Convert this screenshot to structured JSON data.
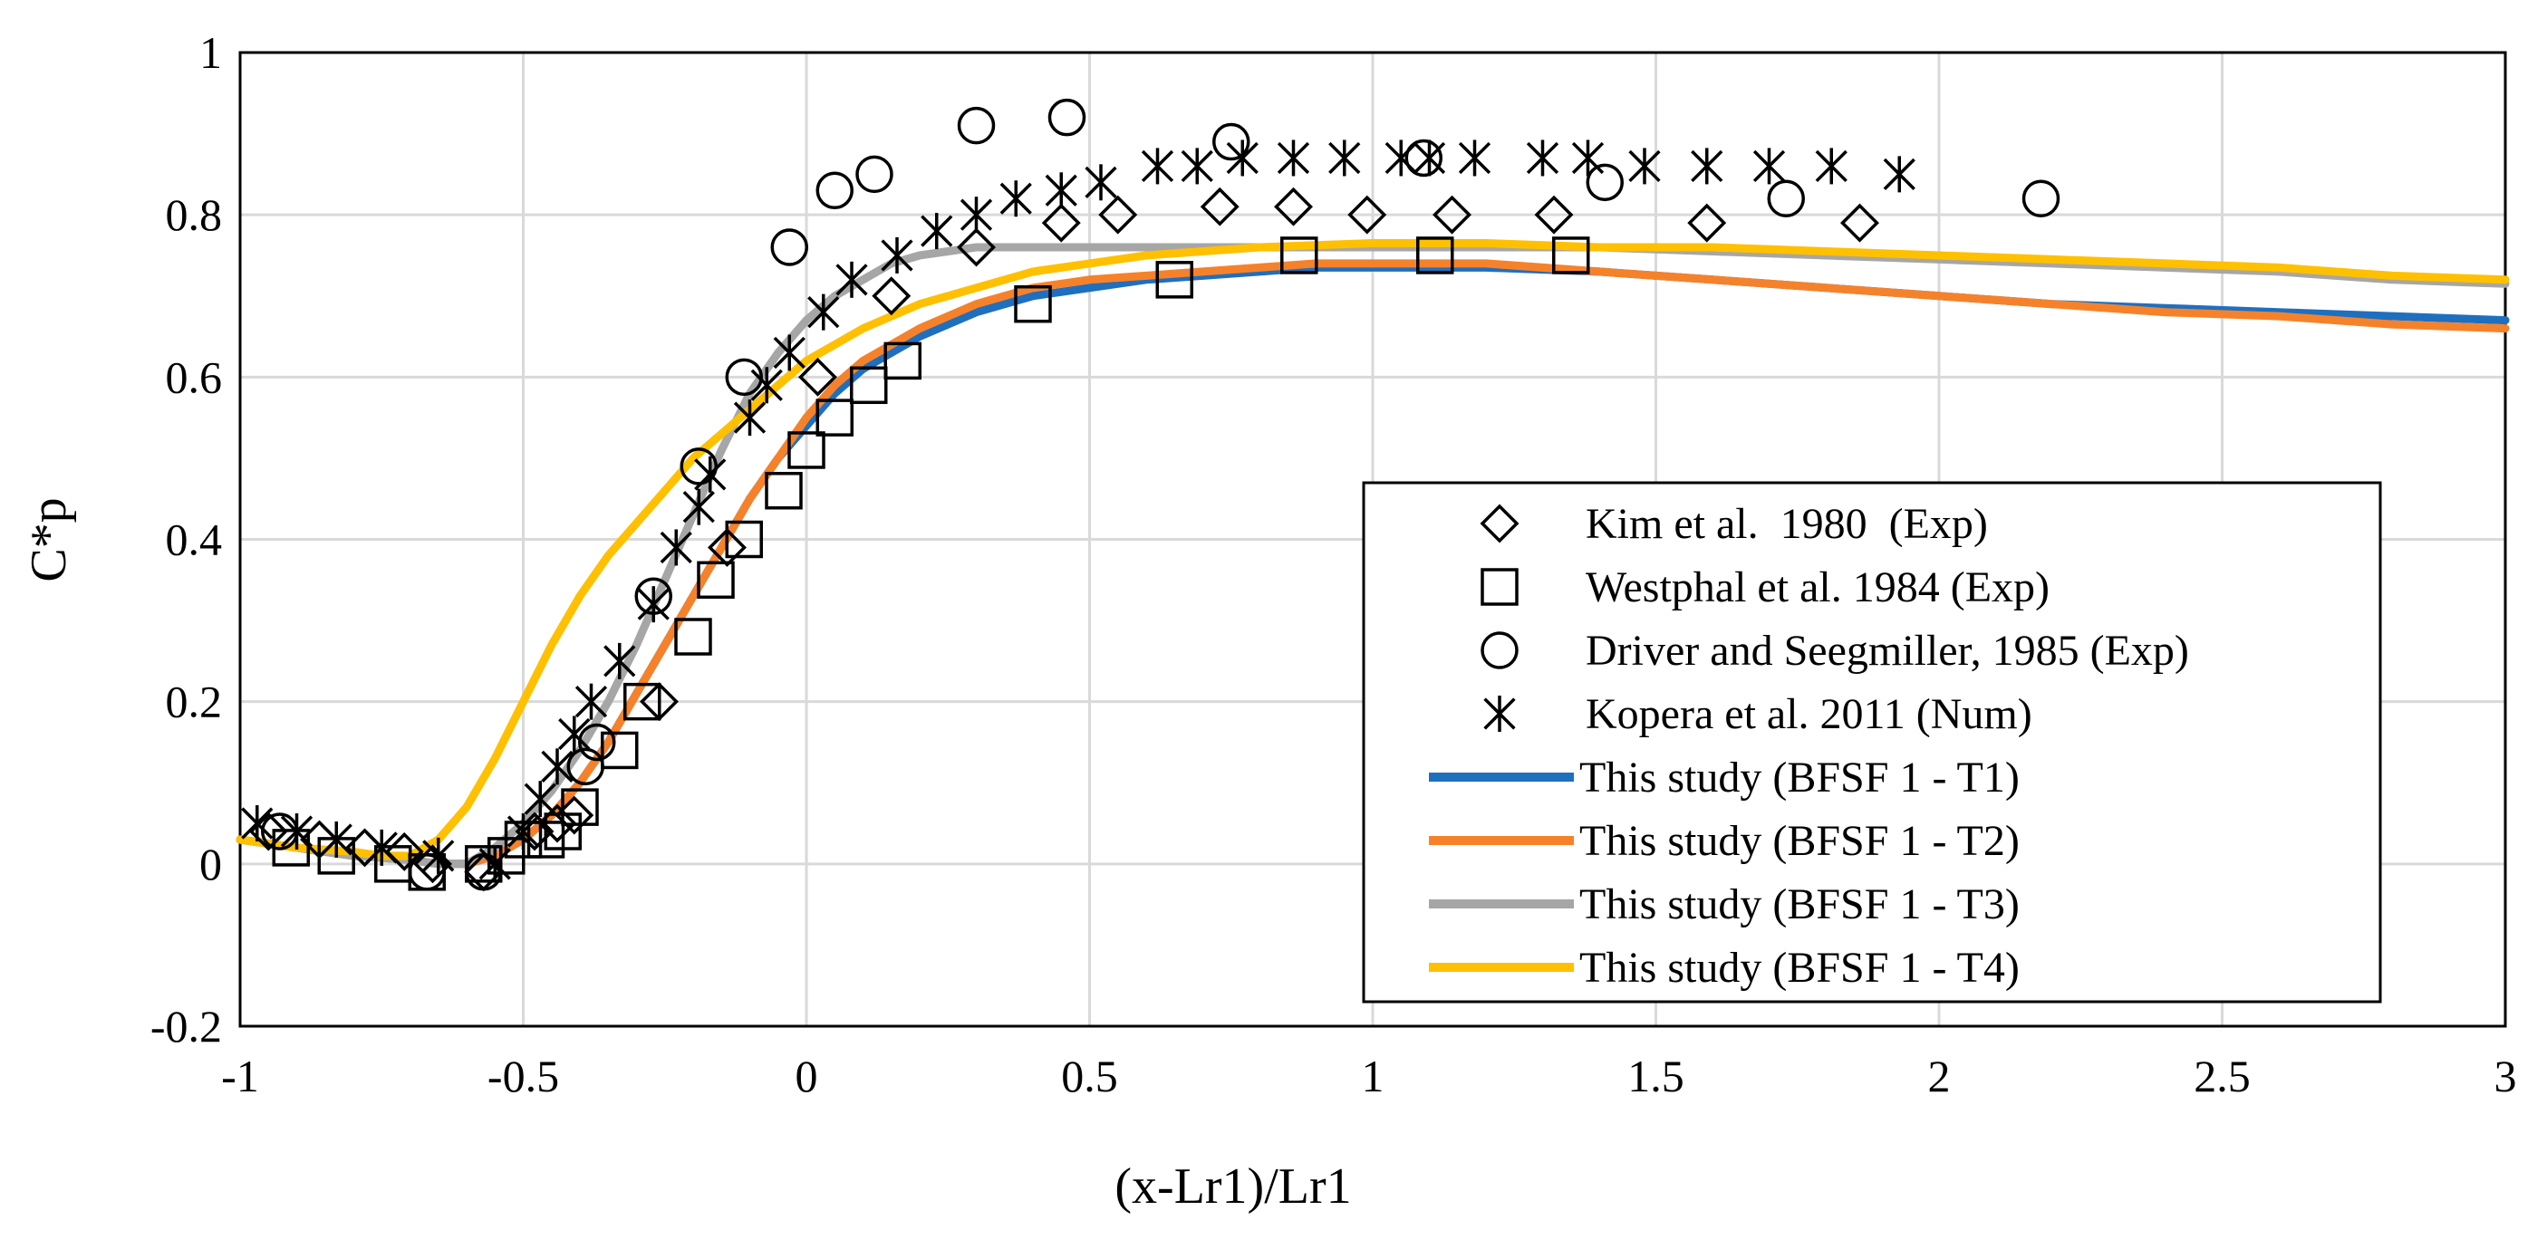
{
  "chart_data": {
    "type": "scatter",
    "title": "",
    "xlabel": "(x-Lr1)/Lr1",
    "ylabel": "C*p",
    "xlim": [
      -1,
      3
    ],
    "ylim": [
      -0.2,
      1
    ],
    "grid": true,
    "legend_position": "center-right",
    "x_ticks": [
      -1,
      -0.5,
      0,
      0.5,
      1,
      1.5,
      2,
      2.5,
      3
    ],
    "x_tick_labels": [
      "-1",
      "-0.5",
      "0",
      "0.5",
      "1",
      "1.5",
      "2",
      "2.5",
      "3"
    ],
    "y_ticks": [
      -0.2,
      0,
      0.2,
      0.4,
      0.6,
      0.8,
      1
    ],
    "y_tick_labels": [
      "-0.2",
      "0",
      "0.2",
      "0.4",
      "0.6",
      "0.8",
      "1"
    ],
    "series": [
      {
        "name": "Kim et al.  1980  (Exp)",
        "kind": "marker",
        "marker": "diamond",
        "color": "#000000",
        "x": [
          -0.95,
          -0.86,
          -0.78,
          -0.71,
          -0.66,
          -0.57,
          -0.48,
          -0.44,
          -0.41,
          -0.26,
          -0.14,
          0.02,
          0.15,
          0.3,
          0.45,
          0.55,
          0.73,
          0.86,
          0.99,
          1.14,
          1.32,
          1.59,
          1.86
        ],
        "y": [
          0.04,
          0.03,
          0.02,
          0.015,
          0.0,
          -0.01,
          0.04,
          0.05,
          0.06,
          0.2,
          0.39,
          0.6,
          0.7,
          0.76,
          0.79,
          0.8,
          0.81,
          0.81,
          0.8,
          0.8,
          0.8,
          0.79,
          0.79
        ]
      },
      {
        "name": "Westphal et al. 1984 (Exp)",
        "kind": "marker",
        "marker": "square",
        "color": "#000000",
        "x": [
          -0.91,
          -0.83,
          -0.73,
          -0.67,
          -0.57,
          -0.53,
          -0.5,
          -0.46,
          -0.43,
          -0.4,
          -0.33,
          -0.29,
          -0.2,
          -0.16,
          -0.11,
          -0.04,
          0.0,
          0.05,
          0.11,
          0.17,
          0.4,
          0.65,
          0.87,
          1.11,
          1.35
        ],
        "y": [
          0.02,
          0.01,
          0.0,
          -0.01,
          0.0,
          0.01,
          0.03,
          0.03,
          0.04,
          0.07,
          0.14,
          0.2,
          0.28,
          0.35,
          0.4,
          0.46,
          0.51,
          0.55,
          0.59,
          0.62,
          0.69,
          0.72,
          0.75,
          0.75,
          0.75
        ]
      },
      {
        "name": "Driver and Seegmiller, 1985 (Exp)",
        "kind": "marker",
        "marker": "circle",
        "color": "#000000",
        "x": [
          -0.93,
          -0.67,
          -0.57,
          -0.39,
          -0.37,
          -0.27,
          -0.19,
          -0.11,
          -0.03,
          0.05,
          0.12,
          0.3,
          0.46,
          0.75,
          1.09,
          1.41,
          1.73,
          2.18
        ],
        "y": [
          0.04,
          -0.01,
          -0.01,
          0.12,
          0.15,
          0.33,
          0.49,
          0.6,
          0.76,
          0.83,
          0.85,
          0.91,
          0.92,
          0.89,
          0.87,
          0.84,
          0.82,
          0.82
        ]
      },
      {
        "name": "Kopera et al. 2011 (Num)",
        "kind": "marker",
        "marker": "asterisk",
        "color": "#000000",
        "x": [
          -0.97,
          -0.9,
          -0.83,
          -0.75,
          -0.65,
          -0.55,
          -0.5,
          -0.47,
          -0.44,
          -0.41,
          -0.38,
          -0.33,
          -0.27,
          -0.23,
          -0.19,
          -0.17,
          -0.1,
          -0.07,
          -0.03,
          0.03,
          0.08,
          0.16,
          0.23,
          0.3,
          0.37,
          0.45,
          0.52,
          0.62,
          0.69,
          0.77,
          0.86,
          0.95,
          1.05,
          1.1,
          1.18,
          1.3,
          1.38,
          1.48,
          1.59,
          1.7,
          1.81,
          1.93
        ],
        "y": [
          0.05,
          0.04,
          0.03,
          0.02,
          0.01,
          0.0,
          0.04,
          0.08,
          0.12,
          0.16,
          0.2,
          0.25,
          0.32,
          0.39,
          0.44,
          0.48,
          0.55,
          0.59,
          0.63,
          0.68,
          0.72,
          0.75,
          0.78,
          0.8,
          0.82,
          0.83,
          0.84,
          0.86,
          0.86,
          0.87,
          0.87,
          0.87,
          0.87,
          0.87,
          0.87,
          0.87,
          0.87,
          0.86,
          0.86,
          0.86,
          0.86,
          0.85
        ]
      },
      {
        "name": "This study (BFSF 1 - T1)",
        "kind": "line",
        "color": "#1f6fbf",
        "x": [
          -1,
          -0.9,
          -0.8,
          -0.7,
          -0.65,
          -0.6,
          -0.55,
          -0.5,
          -0.45,
          -0.4,
          -0.35,
          -0.3,
          -0.25,
          -0.2,
          -0.15,
          -0.1,
          -0.05,
          0,
          0.05,
          0.1,
          0.2,
          0.3,
          0.4,
          0.5,
          0.6,
          0.7,
          0.8,
          0.9,
          1.0,
          1.2,
          1.4,
          1.6,
          1.8,
          2.0,
          2.2,
          2.4,
          2.6,
          2.8,
          3.0
        ],
        "y": [
          0.03,
          0.02,
          0.01,
          0.005,
          0.0,
          0.0,
          0.01,
          0.03,
          0.06,
          0.1,
          0.15,
          0.21,
          0.27,
          0.33,
          0.39,
          0.45,
          0.5,
          0.54,
          0.58,
          0.61,
          0.65,
          0.68,
          0.7,
          0.71,
          0.72,
          0.725,
          0.73,
          0.735,
          0.735,
          0.735,
          0.73,
          0.72,
          0.71,
          0.7,
          0.69,
          0.685,
          0.68,
          0.675,
          0.67
        ]
      },
      {
        "name": "This study (BFSF 1 - T2)",
        "kind": "line",
        "color": "#f5822b",
        "x": [
          -1,
          -0.9,
          -0.8,
          -0.7,
          -0.65,
          -0.6,
          -0.55,
          -0.5,
          -0.45,
          -0.4,
          -0.35,
          -0.3,
          -0.25,
          -0.2,
          -0.15,
          -0.1,
          -0.05,
          0,
          0.05,
          0.1,
          0.2,
          0.3,
          0.4,
          0.5,
          0.6,
          0.7,
          0.8,
          0.9,
          1.0,
          1.2,
          1.4,
          1.6,
          1.8,
          2.0,
          2.2,
          2.4,
          2.6,
          2.8,
          3.0
        ],
        "y": [
          0.03,
          0.02,
          0.01,
          0.005,
          0.0,
          0.0,
          0.01,
          0.03,
          0.06,
          0.1,
          0.15,
          0.21,
          0.27,
          0.33,
          0.39,
          0.45,
          0.5,
          0.55,
          0.59,
          0.62,
          0.66,
          0.69,
          0.71,
          0.72,
          0.725,
          0.73,
          0.735,
          0.74,
          0.74,
          0.74,
          0.73,
          0.72,
          0.71,
          0.7,
          0.69,
          0.68,
          0.675,
          0.665,
          0.66
        ]
      },
      {
        "name": "This study (BFSF 1 - T3)",
        "kind": "line",
        "color": "#a6a6a6",
        "x": [
          -1,
          -0.9,
          -0.8,
          -0.7,
          -0.65,
          -0.6,
          -0.55,
          -0.5,
          -0.45,
          -0.4,
          -0.35,
          -0.3,
          -0.25,
          -0.2,
          -0.15,
          -0.1,
          -0.05,
          0,
          0.05,
          0.1,
          0.15,
          0.2,
          0.25,
          0.3,
          0.4,
          0.5,
          0.6,
          0.8,
          1.0,
          1.2,
          1.4,
          1.6,
          1.8,
          2.0,
          2.2,
          2.4,
          2.6,
          2.8,
          3.0
        ],
        "y": [
          0.03,
          0.02,
          0.01,
          0.005,
          0.0,
          0.0,
          0.02,
          0.05,
          0.09,
          0.14,
          0.2,
          0.27,
          0.35,
          0.43,
          0.51,
          0.58,
          0.63,
          0.67,
          0.7,
          0.72,
          0.74,
          0.75,
          0.755,
          0.76,
          0.76,
          0.76,
          0.76,
          0.76,
          0.76,
          0.76,
          0.76,
          0.755,
          0.75,
          0.745,
          0.74,
          0.735,
          0.73,
          0.72,
          0.715
        ]
      },
      {
        "name": "This study (BFSF 1 - T4)",
        "kind": "line",
        "color": "#ffc000",
        "x": [
          -1,
          -0.9,
          -0.8,
          -0.75,
          -0.7,
          -0.65,
          -0.6,
          -0.55,
          -0.5,
          -0.45,
          -0.4,
          -0.35,
          -0.3,
          -0.25,
          -0.2,
          -0.15,
          -0.1,
          -0.05,
          0,
          0.05,
          0.1,
          0.2,
          0.3,
          0.4,
          0.5,
          0.6,
          0.8,
          1.0,
          1.2,
          1.4,
          1.6,
          1.8,
          2.0,
          2.2,
          2.4,
          2.6,
          2.8,
          3.0
        ],
        "y": [
          0.03,
          0.02,
          0.015,
          0.01,
          0.01,
          0.03,
          0.07,
          0.13,
          0.2,
          0.27,
          0.33,
          0.38,
          0.42,
          0.46,
          0.5,
          0.53,
          0.56,
          0.59,
          0.62,
          0.64,
          0.66,
          0.69,
          0.71,
          0.73,
          0.74,
          0.75,
          0.76,
          0.765,
          0.765,
          0.76,
          0.76,
          0.755,
          0.75,
          0.745,
          0.74,
          0.735,
          0.725,
          0.72
        ]
      }
    ]
  }
}
